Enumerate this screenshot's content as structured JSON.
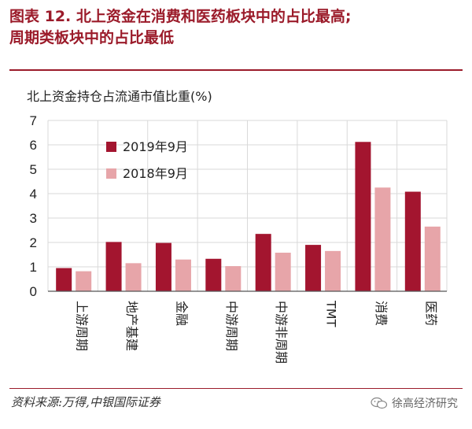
{
  "figure": {
    "title_line1": "图表 12. 北上资金在消费和医药板块中的占比最高;",
    "title_line2": "周期类板块中的占比最低",
    "source": "资料来源:万得,中银国际证券",
    "watermark": "徐高经济研究"
  },
  "chart_data": {
    "type": "bar",
    "title": "北上资金持仓占流通市值比重(%)",
    "categories": [
      "上游周期",
      "地产基建",
      "金融",
      "中游周期",
      "中游非周期",
      "TMT",
      "消费",
      "医药"
    ],
    "series": [
      {
        "name": "2019年9月",
        "values": [
          0.95,
          2.02,
          1.98,
          1.33,
          2.35,
          1.9,
          6.12,
          4.08
        ]
      },
      {
        "name": "2018年9月",
        "values": [
          0.82,
          1.15,
          1.3,
          1.03,
          1.58,
          1.65,
          4.25,
          2.65
        ]
      }
    ],
    "ylim": [
      0,
      7
    ],
    "yticks": [
      0,
      1,
      2,
      3,
      4,
      5,
      6,
      7
    ],
    "grid": true,
    "legend_position": "top-left",
    "colors": [
      "#a3152f",
      "#e7a5a9"
    ]
  }
}
